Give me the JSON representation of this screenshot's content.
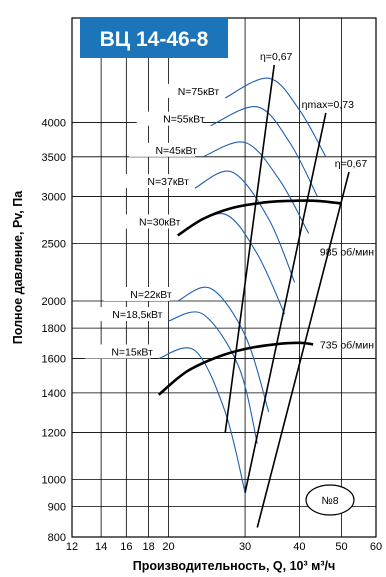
{
  "chart_data": {
    "type": "line",
    "title": "ВЦ 14-46-8",
    "xlabel": "Производительность, Q, 10³ м³/ч",
    "ylabel": "Полное давление, Pv, Па",
    "x_scale": "log",
    "y_scale": "log",
    "x_ticks": [
      12,
      14,
      16,
      18,
      20,
      30,
      40,
      50,
      60
    ],
    "y_ticks": [
      800,
      900,
      1000,
      1200,
      1400,
      1600,
      1800,
      2000,
      2500,
      3000,
      3500,
      4000
    ],
    "xlim": [
      12,
      60
    ],
    "ylim": [
      800,
      6000
    ],
    "series": [
      {
        "name": "985 об/мин",
        "x": [
          21,
          24,
          28,
          33,
          38,
          44,
          50
        ],
        "y": [
          2580,
          2750,
          2870,
          2930,
          2950,
          2950,
          2920
        ]
      },
      {
        "name": "735 об/мин",
        "x": [
          19,
          22,
          26,
          30,
          35,
          40,
          43
        ],
        "y": [
          1390,
          1520,
          1610,
          1660,
          1690,
          1700,
          1690
        ]
      }
    ],
    "efficiency_lines": [
      {
        "label": "η=0,67",
        "x": [
          27,
          35
        ],
        "y": [
          1200,
          5000
        ]
      },
      {
        "label": "ηmax=0,73",
        "x": [
          30,
          46
        ],
        "y": [
          950,
          4150
        ]
      },
      {
        "label": "η=0,67",
        "x": [
          32,
          52
        ],
        "y": [
          830,
          3300
        ]
      }
    ],
    "power_curves": [
      {
        "label": "N=75кВт",
        "x": [
          27,
          34,
          40,
          46
        ],
        "y": [
          4400,
          4750,
          4200,
          3500
        ]
      },
      {
        "label": "N=55кВт",
        "x": [
          25,
          32,
          38,
          44
        ],
        "y": [
          3950,
          4250,
          3700,
          3000
        ]
      },
      {
        "label": "N=45кВт",
        "x": [
          24,
          30,
          36,
          42
        ],
        "y": [
          3500,
          3700,
          3200,
          2600
        ]
      },
      {
        "label": "N=37кВт",
        "x": [
          23,
          28,
          34,
          39
        ],
        "y": [
          3100,
          3300,
          2750,
          2150
        ]
      },
      {
        "label": "N=30кВт",
        "x": [
          22,
          27,
          32,
          37
        ],
        "y": [
          2650,
          2800,
          2400,
          1900
        ]
      },
      {
        "label": "N=22кВт",
        "x": [
          21,
          25,
          30,
          34
        ],
        "y": [
          2000,
          2100,
          1750,
          1300
        ]
      },
      {
        "label": "N=18,5кВт",
        "x": [
          20,
          24,
          29,
          32
        ],
        "y": [
          1850,
          1900,
          1550,
          1150
        ]
      },
      {
        "label": "N=15кВт",
        "x": [
          19,
          23,
          27,
          30
        ],
        "y": [
          1600,
          1650,
          1300,
          950
        ]
      }
    ],
    "badge": "№8",
    "grid": true
  }
}
